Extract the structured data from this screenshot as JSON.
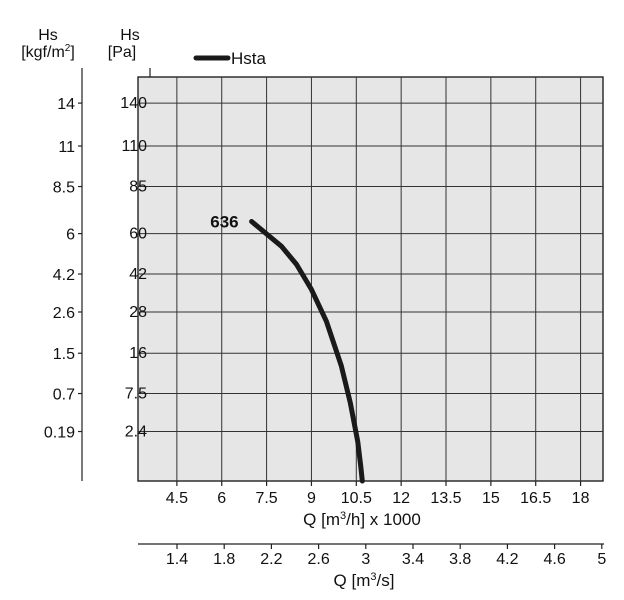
{
  "chart_data": {
    "type": "line",
    "x_ticks_primary": [
      4.5,
      6,
      7.5,
      9,
      10.5,
      12,
      13.5,
      15,
      16.5,
      18
    ],
    "x_ticks_primary_labels": [
      "4.5",
      "6",
      "7.5",
      "9",
      "10.5",
      "12",
      "13.5",
      "15",
      "16.5",
      "18"
    ],
    "x_label_primary_main": "Q [m",
    "x_label_primary_sup": "3",
    "x_label_primary_rest": "/h] x 1000",
    "x_ticks_secondary_labels": [
      "1.4",
      "1.8",
      "2.2",
      "2.6",
      "3",
      "3.4",
      "3.8",
      "4.2",
      "4.6",
      "5"
    ],
    "x_label_secondary_main": "Q [m",
    "x_label_secondary_sup": "3",
    "x_label_secondary_rest": "/s]",
    "y_ticks_pa": [
      2.4,
      7.5,
      16,
      28,
      42,
      60,
      85,
      110,
      140
    ],
    "y_ticks_pa_labels": [
      "2.4",
      "7.5",
      "16",
      "28",
      "42",
      "60",
      "85",
      "110",
      "140"
    ],
    "y_ticks_kgf_labels": [
      "0.19",
      "0.7",
      "1.5",
      "2.6",
      "4.2",
      "6",
      "8.5",
      "11",
      "14"
    ],
    "y_axis_pa_label_top": "Hs",
    "y_axis_pa_label_bottom": "[Pa]",
    "y_axis_kgf_label_top": "Hs",
    "y_axis_kgf_label_bottom_main": "[kgf/m",
    "y_axis_kgf_label_bottom_sup": "2",
    "y_axis_kgf_label_bottom_rest": "]",
    "y_scale": "square-root",
    "grid": true,
    "legend_position": "top-left",
    "series": [
      {
        "name": "Hsta",
        "label": "636",
        "color": "#1a1a1a",
        "x": [
          7.0,
          8.0,
          8.5,
          9.0,
          9.5,
          10.0,
          10.3,
          10.55,
          10.65,
          10.7
        ],
        "y": [
          66,
          54,
          46,
          36,
          25,
          13,
          6,
          1.5,
          0.2,
          0
        ]
      }
    ]
  }
}
